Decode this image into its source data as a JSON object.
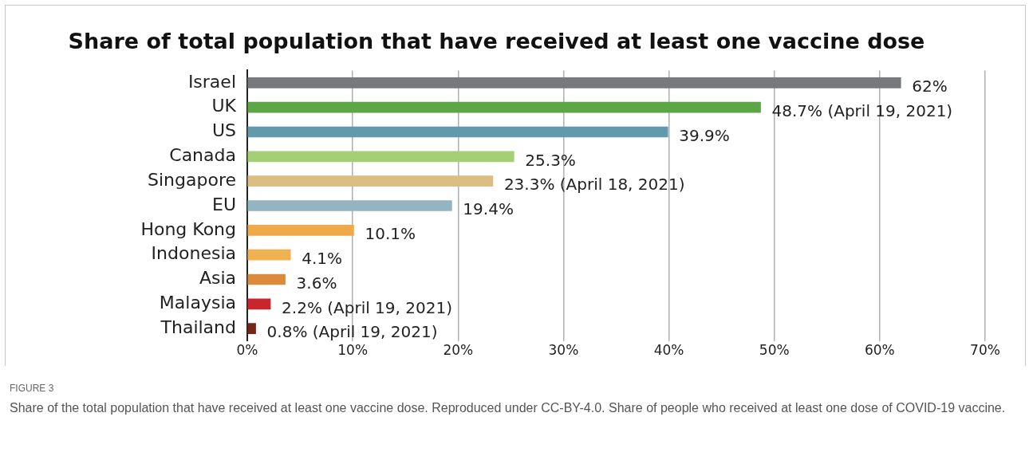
{
  "chart_data": {
    "type": "bar",
    "orientation": "horizontal",
    "title": "Share of total population that have received at least one vaccine dose",
    "categories": [
      "Israel",
      "UK",
      "US",
      "Canada",
      "Singapore",
      "EU",
      "Hong Kong",
      "Indonesia",
      "Asia",
      "Malaysia",
      "Thailand"
    ],
    "values": [
      62,
      48.7,
      39.9,
      25.3,
      23.3,
      19.4,
      10.1,
      4.1,
      3.6,
      2.2,
      0.8
    ],
    "colors": [
      "#77797c",
      "#5da645",
      "#6199ad",
      "#a4cf74",
      "#dcbd82",
      "#93b5c0",
      "#eda94a",
      "#f0b150",
      "#dc8a3c",
      "#c8262e",
      "#7a2418"
    ],
    "value_labels": [
      "62%",
      "48.7% (April 19, 2021)",
      "39.9%",
      "25.3%",
      "23.3% (April 18, 2021)",
      "19.4%",
      "10.1%",
      "4.1%",
      "3.6%",
      "2.2% (April 19, 2021)",
      "0.8% (April 19, 2021)"
    ],
    "xlim": [
      0,
      70
    ],
    "xticks": [
      {
        "value": 0,
        "label": "0%"
      },
      {
        "value": 10,
        "label": "10%"
      },
      {
        "value": 20,
        "label": "20%"
      },
      {
        "value": 30,
        "label": "30%"
      },
      {
        "value": 40,
        "label": "40%"
      },
      {
        "value": 50,
        "label": "50%"
      },
      {
        "value": 60,
        "label": "60%"
      },
      {
        "value": 70,
        "label": "70%"
      }
    ],
    "grid": "x",
    "legend": false,
    "annotations": [
      "FIGURE 3",
      "Share of the total population that have received at least one vaccine dose. Reproduced under CC-BY-4.0. Share of people who received at least one dose of COVID-19 vaccine."
    ]
  }
}
